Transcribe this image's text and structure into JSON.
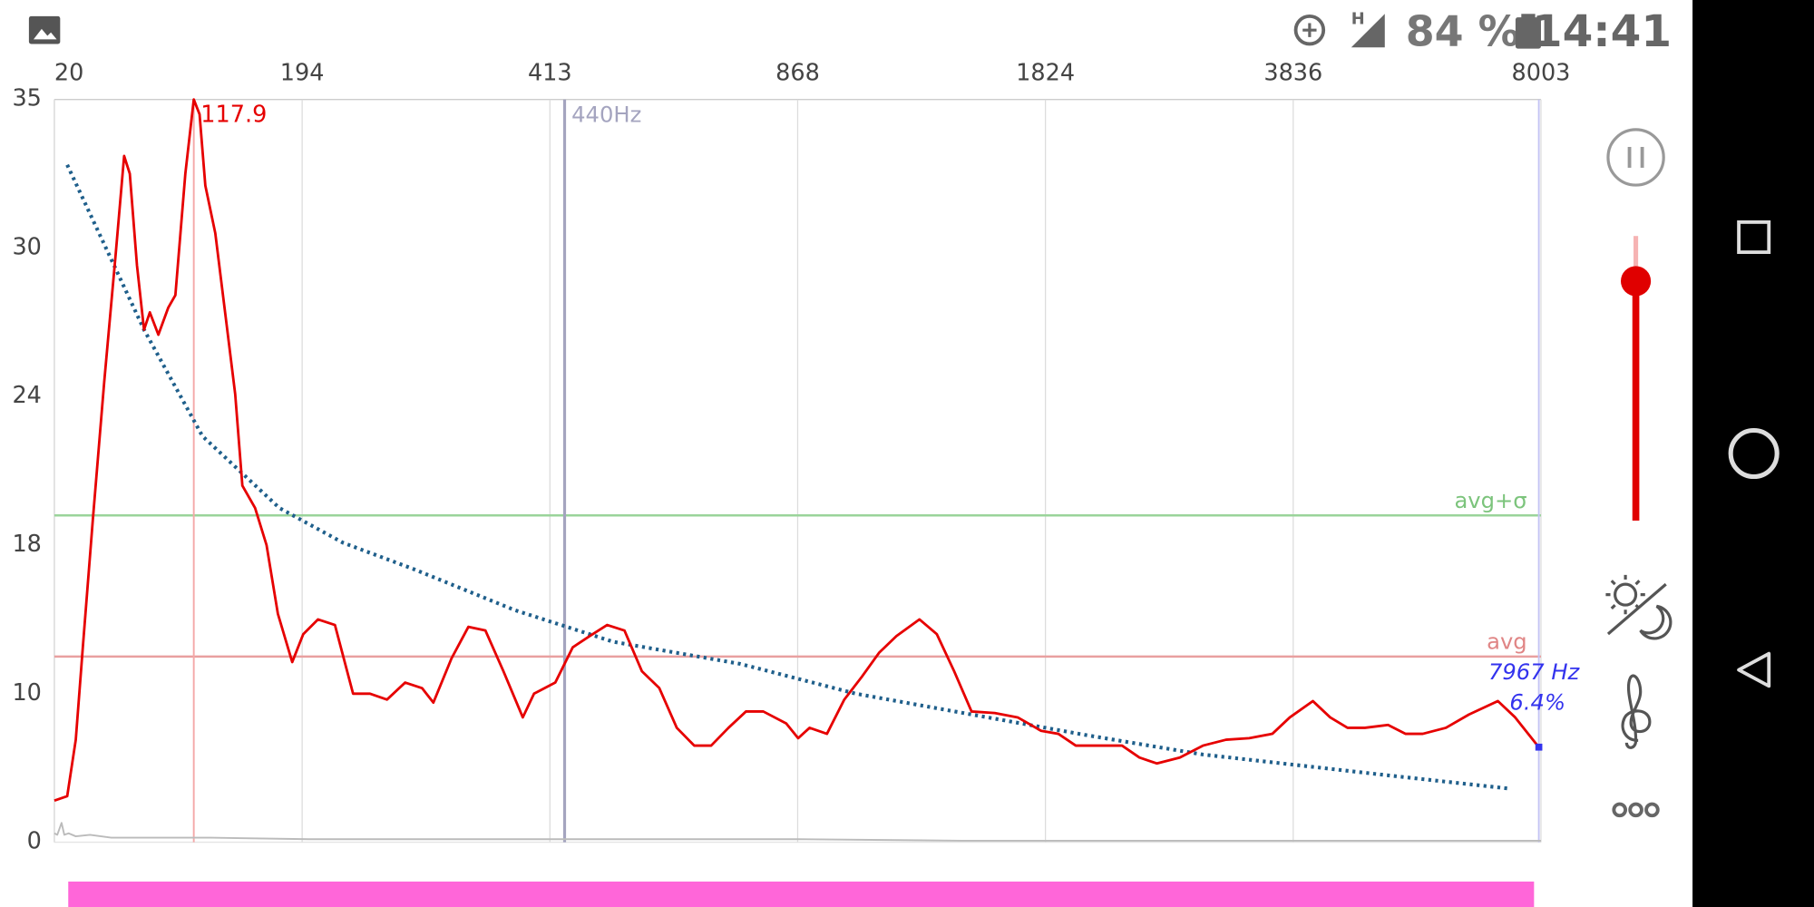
{
  "status_bar": {
    "network": "H",
    "battery": "84 %",
    "time": "14:41"
  },
  "chart_data": {
    "type": "line",
    "xlim": [
      20,
      8003
    ],
    "xticks": [
      20,
      194,
      413,
      868,
      1824,
      3836,
      8003
    ],
    "ylim": [
      0,
      35
    ],
    "yticks": [
      0,
      10,
      18,
      24,
      30,
      35
    ],
    "grid": true,
    "series": [
      {
        "color": "#e60000",
        "style": "solid",
        "x": [
          20,
          29,
          35,
          40,
          47,
          55,
          63,
          69,
          73,
          78,
          83,
          87,
          93,
          100,
          105,
          112,
          117.9,
          122,
          126,
          133,
          141,
          147,
          152,
          161,
          169,
          177,
          187,
          195,
          208,
          223,
          239,
          254,
          269,
          285,
          300,
          310,
          326,
          341,
          356,
          372,
          389,
          399,
          423,
          455,
          486,
          518,
          550,
          582,
          614,
          646,
          678,
          709,
          741,
          773,
          805,
          847,
          870,
          914,
          981,
          1048,
          1115,
          1182,
          1249,
          1338,
          1405,
          1472,
          1539,
          1628,
          1717,
          1807,
          1929,
          2070,
          2258,
          2446,
          2587,
          2728,
          2915,
          3103,
          3291,
          3479,
          3667,
          3808,
          4167,
          4458,
          4750,
          5042,
          5431,
          5723,
          6014,
          6403,
          6792,
          7279,
          7570,
          7967
        ],
        "values": [
          2.8,
          3.1,
          6.9,
          12.5,
          19.0,
          24.6,
          29.7,
          33.1,
          32.5,
          29.3,
          26.7,
          27.4,
          26.5,
          27.6,
          28.1,
          32.5,
          35.0,
          34.5,
          32.1,
          30.5,
          26.9,
          24.1,
          20.4,
          19.5,
          18.0,
          14.3,
          11.7,
          13.2,
          14.0,
          13.7,
          10.0,
          10.0,
          9.6,
          10.6,
          10.3,
          9.4,
          11.9,
          13.6,
          13.4,
          11.2,
          8.4,
          10.0,
          10.6,
          12.5,
          13.1,
          13.7,
          13.4,
          11.2,
          10.3,
          7.7,
          6.5,
          6.5,
          7.7,
          8.8,
          8.8,
          8.0,
          7.0,
          7.7,
          7.3,
          9.6,
          10.9,
          12.2,
          13.1,
          14.0,
          13.2,
          11.2,
          8.8,
          8.7,
          8.4,
          7.5,
          7.3,
          6.5,
          6.5,
          6.5,
          5.7,
          5.3,
          5.7,
          6.5,
          6.9,
          7.0,
          7.3,
          8.4,
          9.5,
          8.4,
          7.7,
          7.7,
          7.9,
          7.3,
          7.3,
          7.7,
          8.6,
          9.5,
          8.4,
          6.4
        ]
      },
      {
        "color": "#1f5f8b",
        "style": "dotted",
        "x": [
          29,
          83,
          124,
          178,
          230,
          293,
          382,
          529,
          763,
          1092,
          1539,
          2164,
          3103,
          3875,
          5431,
          7493
        ],
        "values": [
          32.8,
          26.7,
          22.4,
          19.5,
          18.1,
          16.7,
          14.5,
          12.8,
          11.6,
          10.0,
          8.6,
          7.2,
          5.9,
          5.2,
          4.5,
          3.6
        ]
      },
      {
        "color": "#bbbbbb",
        "style": "solid",
        "x": [
          20,
          22,
          25,
          27,
          30,
          35,
          45,
          60,
          90,
          130,
          200,
          300,
          413,
          500,
          868,
          1500,
          1824,
          3000,
          5000,
          8003
        ],
        "values": [
          0.6,
          0.5,
          1.3,
          0.5,
          0.6,
          0.4,
          0.5,
          0.3,
          0.3,
          0.3,
          0.2,
          0.2,
          0.2,
          0.2,
          0.2,
          0.1,
          0.1,
          0.1,
          0.1,
          0.1
        ]
      }
    ],
    "reference_lines": [
      {
        "label": "avg+σ",
        "y": 19.2,
        "color": "#9ad49a",
        "text_color": "#7cc47c"
      },
      {
        "label": "avg",
        "y": 12.0,
        "color": "#e9a0a0",
        "text_color": "#e08585"
      }
    ],
    "peak": {
      "x": 117.9,
      "color": "#f4a8a8"
    },
    "marker": {
      "x": 440,
      "label": "440Hz",
      "color": "#a4a4bf"
    },
    "cursor": {
      "x": 7967,
      "y": 6.4,
      "x_label": "7967 Hz",
      "y_label": "6.4%",
      "color": "#3333ee"
    }
  }
}
